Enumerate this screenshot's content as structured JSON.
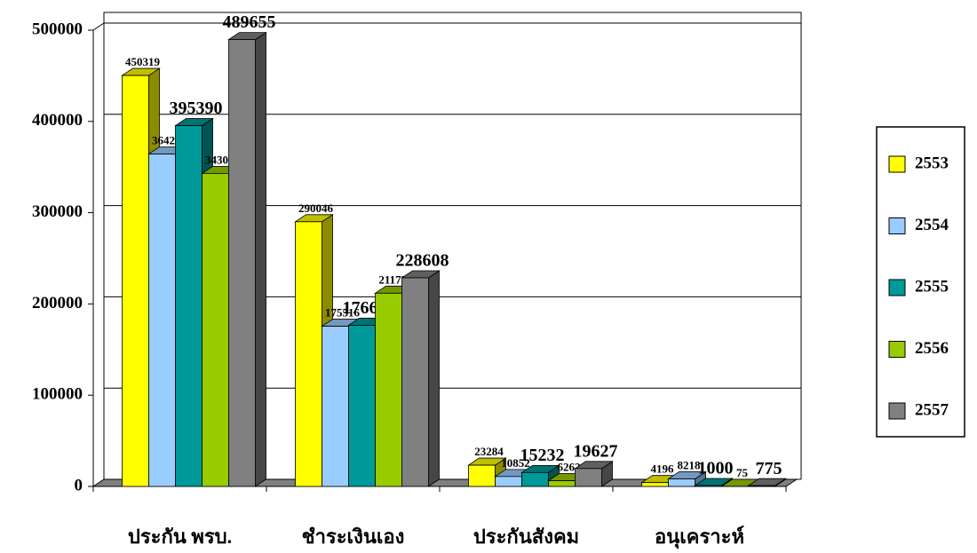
{
  "chart_data": {
    "type": "bar3d",
    "categories": [
      "ประกัน พรบ.",
      "ชำระเงินเอง",
      "ประกันสังคม",
      "อนุเคราะห์"
    ],
    "series": [
      {
        "name": "2553",
        "color": "#ffff00",
        "values": [
          450319,
          290046,
          23284,
          4196
        ]
      },
      {
        "name": "2554",
        "color": "#99ccff",
        "values": [
          364268,
          175516,
          10852,
          8218
        ]
      },
      {
        "name": "2555",
        "color": "#009999",
        "values": [
          395390,
          176608,
          15232,
          1000
        ]
      },
      {
        "name": "2556",
        "color": "#99cc00",
        "values": [
          343034,
          211739,
          6262,
          75
        ]
      },
      {
        "name": "2557",
        "color": "#808080",
        "values": [
          489655,
          228608,
          19627,
          775
        ]
      }
    ],
    "ylim": [
      0,
      500000
    ],
    "yticks": [
      0,
      100000,
      200000,
      300000,
      400000,
      500000
    ],
    "grid": true,
    "legend": "right"
  }
}
